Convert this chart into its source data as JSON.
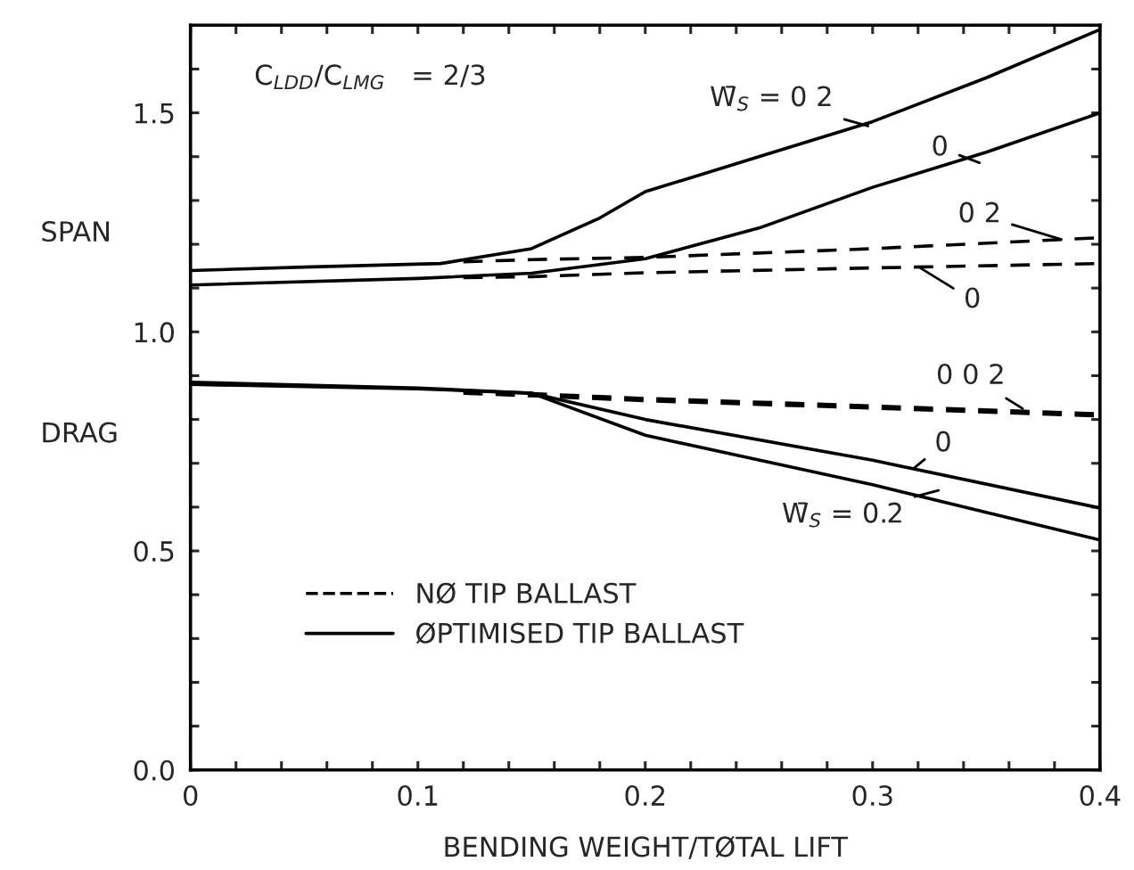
{
  "chart_data": {
    "type": "line",
    "xlabel": "BENDING WEIGHT/TØTAL LIFT",
    "xlim": [
      0,
      0.4
    ],
    "ylim": [
      0,
      1.7
    ],
    "xticks": [
      0,
      {
        "value": 0.02,
        "label": null
      },
      {
        "value": 0.04,
        "label": null
      },
      {
        "value": 0.06,
        "label": null
      },
      {
        "value": 0.08,
        "label": null
      },
      0.1,
      {
        "value": 0.12,
        "label": null
      },
      {
        "value": 0.14,
        "label": null
      },
      {
        "value": 0.16,
        "label": null
      },
      {
        "value": 0.18,
        "label": null
      },
      0.2,
      {
        "value": 0.22,
        "label": null
      },
      {
        "value": 0.24,
        "label": null
      },
      {
        "value": 0.26,
        "label": null
      },
      {
        "value": 0.28,
        "label": null
      },
      0.3,
      {
        "value": 0.32,
        "label": null
      },
      {
        "value": 0.34,
        "label": null
      },
      {
        "value": 0.36,
        "label": null
      },
      {
        "value": 0.38,
        "label": null
      },
      0.4
    ],
    "yticks": [
      {
        "value": 0,
        "label": "0.0"
      },
      {
        "value": 0.1,
        "label": null
      },
      {
        "value": 0.2,
        "label": null
      },
      {
        "value": 0.3,
        "label": null
      },
      {
        "value": 0.4,
        "label": null
      },
      0.5,
      {
        "value": 0.6,
        "label": null
      },
      {
        "value": 0.7,
        "label": null
      },
      {
        "value": 0.8,
        "label": null
      },
      {
        "value": 0.9,
        "label": null
      },
      {
        "value": 1,
        "label": "1.0"
      },
      {
        "value": 1.1,
        "label": null
      },
      {
        "value": 1.2,
        "label": null
      },
      {
        "value": 1.3,
        "label": null
      },
      {
        "value": 1.4,
        "label": null
      },
      1.5,
      {
        "value": 1.6,
        "label": null
      }
    ],
    "grid": false,
    "legend": "bottom left",
    "marker": "none",
    "series": [
      {
        "name": "NØ TIP BALLAST",
        "color": "#000000",
        "line_style": "dashed",
        "x": [
          0.12,
          0.15,
          0.2,
          0.3,
          0.4
        ],
        "values": [
          1.16,
          1.165,
          1.17,
          1.19,
          1.215
        ]
      },
      {
        "color": "#000000",
        "line_style": "dashed",
        "x": [
          0.12,
          0.15,
          0.2,
          0.3,
          0.4
        ],
        "values": [
          1.124,
          1.126,
          1.135,
          1.146,
          1.156
        ]
      },
      {
        "color": "#000000",
        "line_style": "dashed",
        "x": [
          0.12,
          0.15,
          0.2,
          0.3,
          0.4
        ],
        "values": [
          0.865,
          0.859,
          0.848,
          0.831,
          0.813
        ]
      },
      {
        "color": "#000000",
        "line_style": "dashed",
        "x": [
          0.12,
          0.15,
          0.2,
          0.3,
          0.4
        ],
        "values": [
          0.86,
          0.854,
          0.843,
          0.826,
          0.808
        ]
      },
      {
        "name": "ØPTIMISED TIP BALLAST",
        "color": "#000000",
        "line_style": "solid",
        "x": [
          0,
          0.05,
          0.11,
          0.15,
          0.18,
          0.2,
          0.25,
          0.3,
          0.35,
          0.4
        ],
        "values": [
          1.14,
          1.148,
          1.156,
          1.19,
          1.26,
          1.32,
          1.4,
          1.48,
          1.58,
          1.69
        ]
      },
      {
        "color": "#000000",
        "line_style": "solid",
        "x": [
          0,
          0.1,
          0.15,
          0.2,
          0.25,
          0.3,
          0.35,
          0.4
        ],
        "values": [
          1.107,
          1.122,
          1.134,
          1.167,
          1.237,
          1.33,
          1.41,
          1.5
        ]
      },
      {
        "color": "#000000",
        "line_style": "solid",
        "x": [
          0,
          0.1,
          0.15,
          0.2,
          0.3,
          0.4
        ],
        "values": [
          0.88,
          0.87,
          0.86,
          0.8,
          0.707,
          0.598
        ]
      },
      {
        "color": "#000000",
        "line_style": "solid",
        "x": [
          0,
          0.1,
          0.15,
          0.2,
          0.3,
          0.4
        ],
        "values": [
          0.885,
          0.872,
          0.86,
          0.764,
          0.651,
          0.525
        ]
      }
    ],
    "annotations": [
      "C$_{LDD}$/C$_{LMG}$   = 2/3",
      "SPAN",
      "DRAG",
      {
        "text": "W̄$_{S}$ = 0 2",
        "x": 0.298,
        "y": 1.47
      },
      {
        "text": "0",
        "x": 0.347,
        "y": 1.386
      },
      {
        "text": "0 2",
        "x": 0.383,
        "y": 1.211
      },
      {
        "text": "0",
        "x": 0.321,
        "y": 1.146
      },
      {
        "text": "0 0 2",
        "x": 0.366,
        "y": 0.825
      },
      {
        "text": "0",
        "x": 0.318,
        "y": 0.688
      },
      {
        "text": "W̄$_{S}$ = 0.2",
        "x": 0.329,
        "y": 0.638
      }
    ]
  }
}
